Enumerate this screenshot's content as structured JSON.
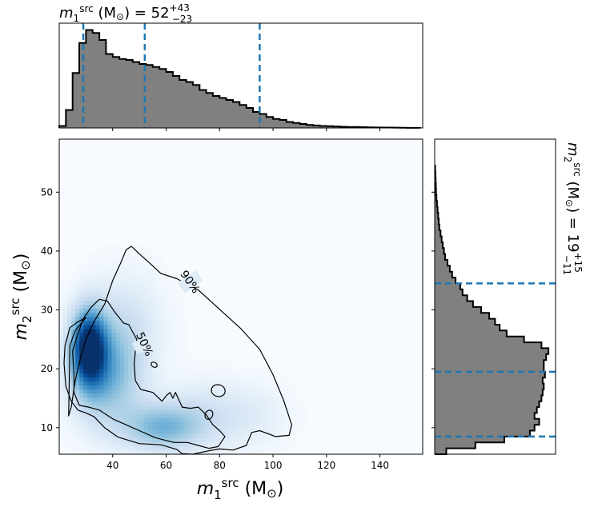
{
  "chart_data": {
    "type": "corner",
    "colors": {
      "histogram_fill": "#808080",
      "histogram_edge": "#000000",
      "quantile_line": "#1f77b4",
      "density_colormap": "Blues",
      "contour": "#000000"
    },
    "main_panel": {
      "type": "heatmap",
      "xlabel": "m1src (M⊙)",
      "ylabel": "m2src (M⊙)",
      "xlim": [
        20,
        156
      ],
      "ylim": [
        5.5,
        59
      ],
      "xticks": [
        "40",
        "60",
        "80",
        "100",
        "120",
        "140"
      ],
      "yticks": [
        "10",
        "20",
        "30",
        "40",
        "50"
      ],
      "density_peaks": [
        {
          "x": 31,
          "y": 23.5,
          "weight": 1.0
        },
        {
          "x": 38,
          "y": 20,
          "weight": 0.55
        },
        {
          "x": 60,
          "y": 10,
          "weight": 0.45
        },
        {
          "x": 75,
          "y": 13,
          "weight": 0.2
        }
      ],
      "contours": [
        {
          "label": "90%",
          "points": [
            [
              23.5,
              12.0
            ],
            [
              24.5,
              13.5
            ],
            [
              26,
              18
            ],
            [
              28,
              22
            ],
            [
              30,
              25
            ],
            [
              33,
              28
            ],
            [
              37,
              31
            ],
            [
              40,
              35
            ],
            [
              43,
              38
            ],
            [
              45,
              40.2
            ],
            [
              47,
              40.8
            ],
            [
              50,
              39.5
            ],
            [
              53,
              38.3
            ],
            [
              58,
              36.2
            ],
            [
              64,
              35.3
            ],
            [
              72,
              33.4
            ],
            [
              80,
              30.1
            ],
            [
              88,
              26.8
            ],
            [
              95,
              23.3
            ],
            [
              100,
              19
            ],
            [
              104,
              14.6
            ],
            [
              107,
              10.5
            ],
            [
              106,
              8.7
            ],
            [
              101,
              8.5
            ],
            [
              95,
              9.5
            ],
            [
              92,
              9.2
            ],
            [
              90,
              7.0
            ],
            [
              85,
              6.2
            ],
            [
              80,
              6.4
            ],
            [
              75,
              6.0
            ],
            [
              70,
              5.5
            ],
            [
              66,
              5.6
            ],
            [
              64,
              6.3
            ],
            [
              58,
              7.1
            ],
            [
              50,
              7.3
            ],
            [
              42,
              8.4
            ],
            [
              37,
              10.0
            ],
            [
              33,
              11.9
            ],
            [
              30,
              12.5
            ],
            [
              27,
              13.0
            ],
            [
              24.5,
              14.5
            ],
            [
              22.5,
              17.0
            ],
            [
              21.8,
              21.0
            ],
            [
              22.2,
              24.0
            ],
            [
              24,
              27.0
            ],
            [
              27,
              28.0
            ],
            [
              30,
              28.7
            ],
            [
              26,
              26.5
            ],
            [
              24,
              24.0
            ]
          ],
          "label_at": {
            "x": 69,
            "y": 34.8,
            "angle": 55
          }
        },
        {
          "label": "50%",
          "points": [
            [
              25.5,
              19.0
            ],
            [
              25.0,
              23.0
            ],
            [
              27.0,
              26.0
            ],
            [
              29.0,
              28.5
            ],
            [
              32.0,
              30.5
            ],
            [
              35.0,
              31.8
            ],
            [
              38.0,
              31.5
            ],
            [
              41.0,
              29.5
            ],
            [
              44.0,
              27.8
            ],
            [
              46.0,
              27.5
            ],
            [
              49.0,
              25.0
            ],
            [
              48.0,
              21.0
            ],
            [
              48.5,
              18.0
            ],
            [
              50.5,
              16.5
            ],
            [
              55.0,
              16.0
            ],
            [
              58.5,
              14.5
            ],
            [
              60.0,
              15.4
            ],
            [
              61.5,
              16.0
            ],
            [
              62.5,
              15.0
            ],
            [
              63.5,
              16.0
            ],
            [
              66.0,
              13.5
            ],
            [
              69.0,
              13.3
            ],
            [
              72.0,
              13.5
            ],
            [
              75.0,
              12.2
            ],
            [
              77.5,
              10.5
            ],
            [
              80.0,
              9.5
            ],
            [
              82.0,
              8.5
            ],
            [
              79.5,
              6.8
            ],
            [
              76.0,
              6.5
            ],
            [
              72.0,
              7.0
            ],
            [
              68.0,
              7.5
            ],
            [
              63.0,
              7.5
            ],
            [
              56.0,
              8.3
            ],
            [
              50.0,
              9.5
            ],
            [
              45.0,
              10.5
            ],
            [
              40.0,
              11.5
            ],
            [
              35.0,
              13.0
            ],
            [
              31.0,
              13.5
            ],
            [
              27.5,
              13.8
            ],
            [
              25.5,
              16.0
            ]
          ],
          "label_at": {
            "x": 52,
            "y": 24.2,
            "angle": 65
          }
        }
      ],
      "small_contours": [
        {
          "cx": 79.5,
          "cy": 16.3,
          "rx": 2.6,
          "ry": 1.0,
          "angle": 15
        },
        {
          "cx": 76.0,
          "cy": 12.2,
          "rx": 1.4,
          "ry": 0.8,
          "angle": 25
        },
        {
          "cx": 55.5,
          "cy": 20.7,
          "rx": 1.2,
          "ry": 0.4,
          "angle": 30
        }
      ]
    },
    "top_panel": {
      "type": "histogram",
      "title": "m1src (M⊙) = 52+43−23",
      "xlim": [
        20,
        156
      ],
      "bin_edges": [
        20,
        22.5,
        25,
        27.5,
        30,
        32.5,
        35,
        37.5,
        40,
        42.5,
        45,
        47.5,
        50,
        52.5,
        55,
        57.5,
        60,
        62.5,
        65,
        67.5,
        70,
        72.5,
        75,
        77.5,
        80,
        82.5,
        85,
        87.5,
        90,
        92.5,
        95,
        97.5,
        100,
        102.5,
        105,
        107.5,
        110,
        112.5,
        115,
        117.5,
        120,
        122.5,
        125,
        127.5,
        130,
        132.5,
        135,
        137.5,
        140,
        142.5,
        145,
        147.5,
        150,
        152.5,
        155
      ],
      "counts": [
        0.02,
        0.18,
        0.55,
        0.85,
        0.98,
        0.95,
        0.88,
        0.74,
        0.71,
        0.69,
        0.68,
        0.66,
        0.64,
        0.63,
        0.61,
        0.59,
        0.56,
        0.52,
        0.48,
        0.46,
        0.43,
        0.38,
        0.35,
        0.32,
        0.3,
        0.28,
        0.26,
        0.23,
        0.2,
        0.16,
        0.14,
        0.11,
        0.09,
        0.08,
        0.06,
        0.05,
        0.04,
        0.03,
        0.025,
        0.02,
        0.018,
        0.015,
        0.012,
        0.01,
        0.01,
        0.008,
        0.006,
        0.005,
        0.004,
        0.004,
        0.003,
        0.002,
        0.001,
        0.001
      ],
      "quantiles": [
        29,
        52,
        95
      ]
    },
    "right_panel": {
      "type": "histogram",
      "orientation": "horizontal",
      "title": "m2src (M⊙) = 19+15−11",
      "ylim": [
        5.5,
        59
      ],
      "bin_edges": [
        5.5,
        6.5,
        7.5,
        8.5,
        9.5,
        10.5,
        11.5,
        12.5,
        13.5,
        14.5,
        15.5,
        16.5,
        17.5,
        18.5,
        19.5,
        20.5,
        21.5,
        22.5,
        23.5,
        24.5,
        25.5,
        26.5,
        27.5,
        28.5,
        29.5,
        30.5,
        31.5,
        32.5,
        33.5,
        34.5,
        35.5,
        36.5,
        37.5,
        38.5,
        39.5,
        40.5,
        41.5,
        42.5,
        43.5,
        44.5,
        45.5,
        46.5,
        47.5,
        48.5,
        49.5,
        50.5,
        51.5,
        52.5,
        53.5,
        54.5
      ],
      "counts": [
        0.1,
        0.35,
        0.6,
        0.82,
        0.86,
        0.9,
        0.86,
        0.88,
        0.9,
        0.92,
        0.93,
        0.94,
        0.93,
        0.95,
        0.94,
        0.94,
        0.96,
        0.98,
        0.92,
        0.77,
        0.62,
        0.56,
        0.52,
        0.47,
        0.4,
        0.33,
        0.28,
        0.24,
        0.22,
        0.18,
        0.15,
        0.13,
        0.11,
        0.09,
        0.08,
        0.07,
        0.06,
        0.05,
        0.04,
        0.035,
        0.03,
        0.025,
        0.02,
        0.015,
        0.012,
        0.01,
        0.008,
        0.006,
        0.004
      ],
      "quantiles": [
        8.5,
        19.5,
        34.5
      ]
    }
  }
}
